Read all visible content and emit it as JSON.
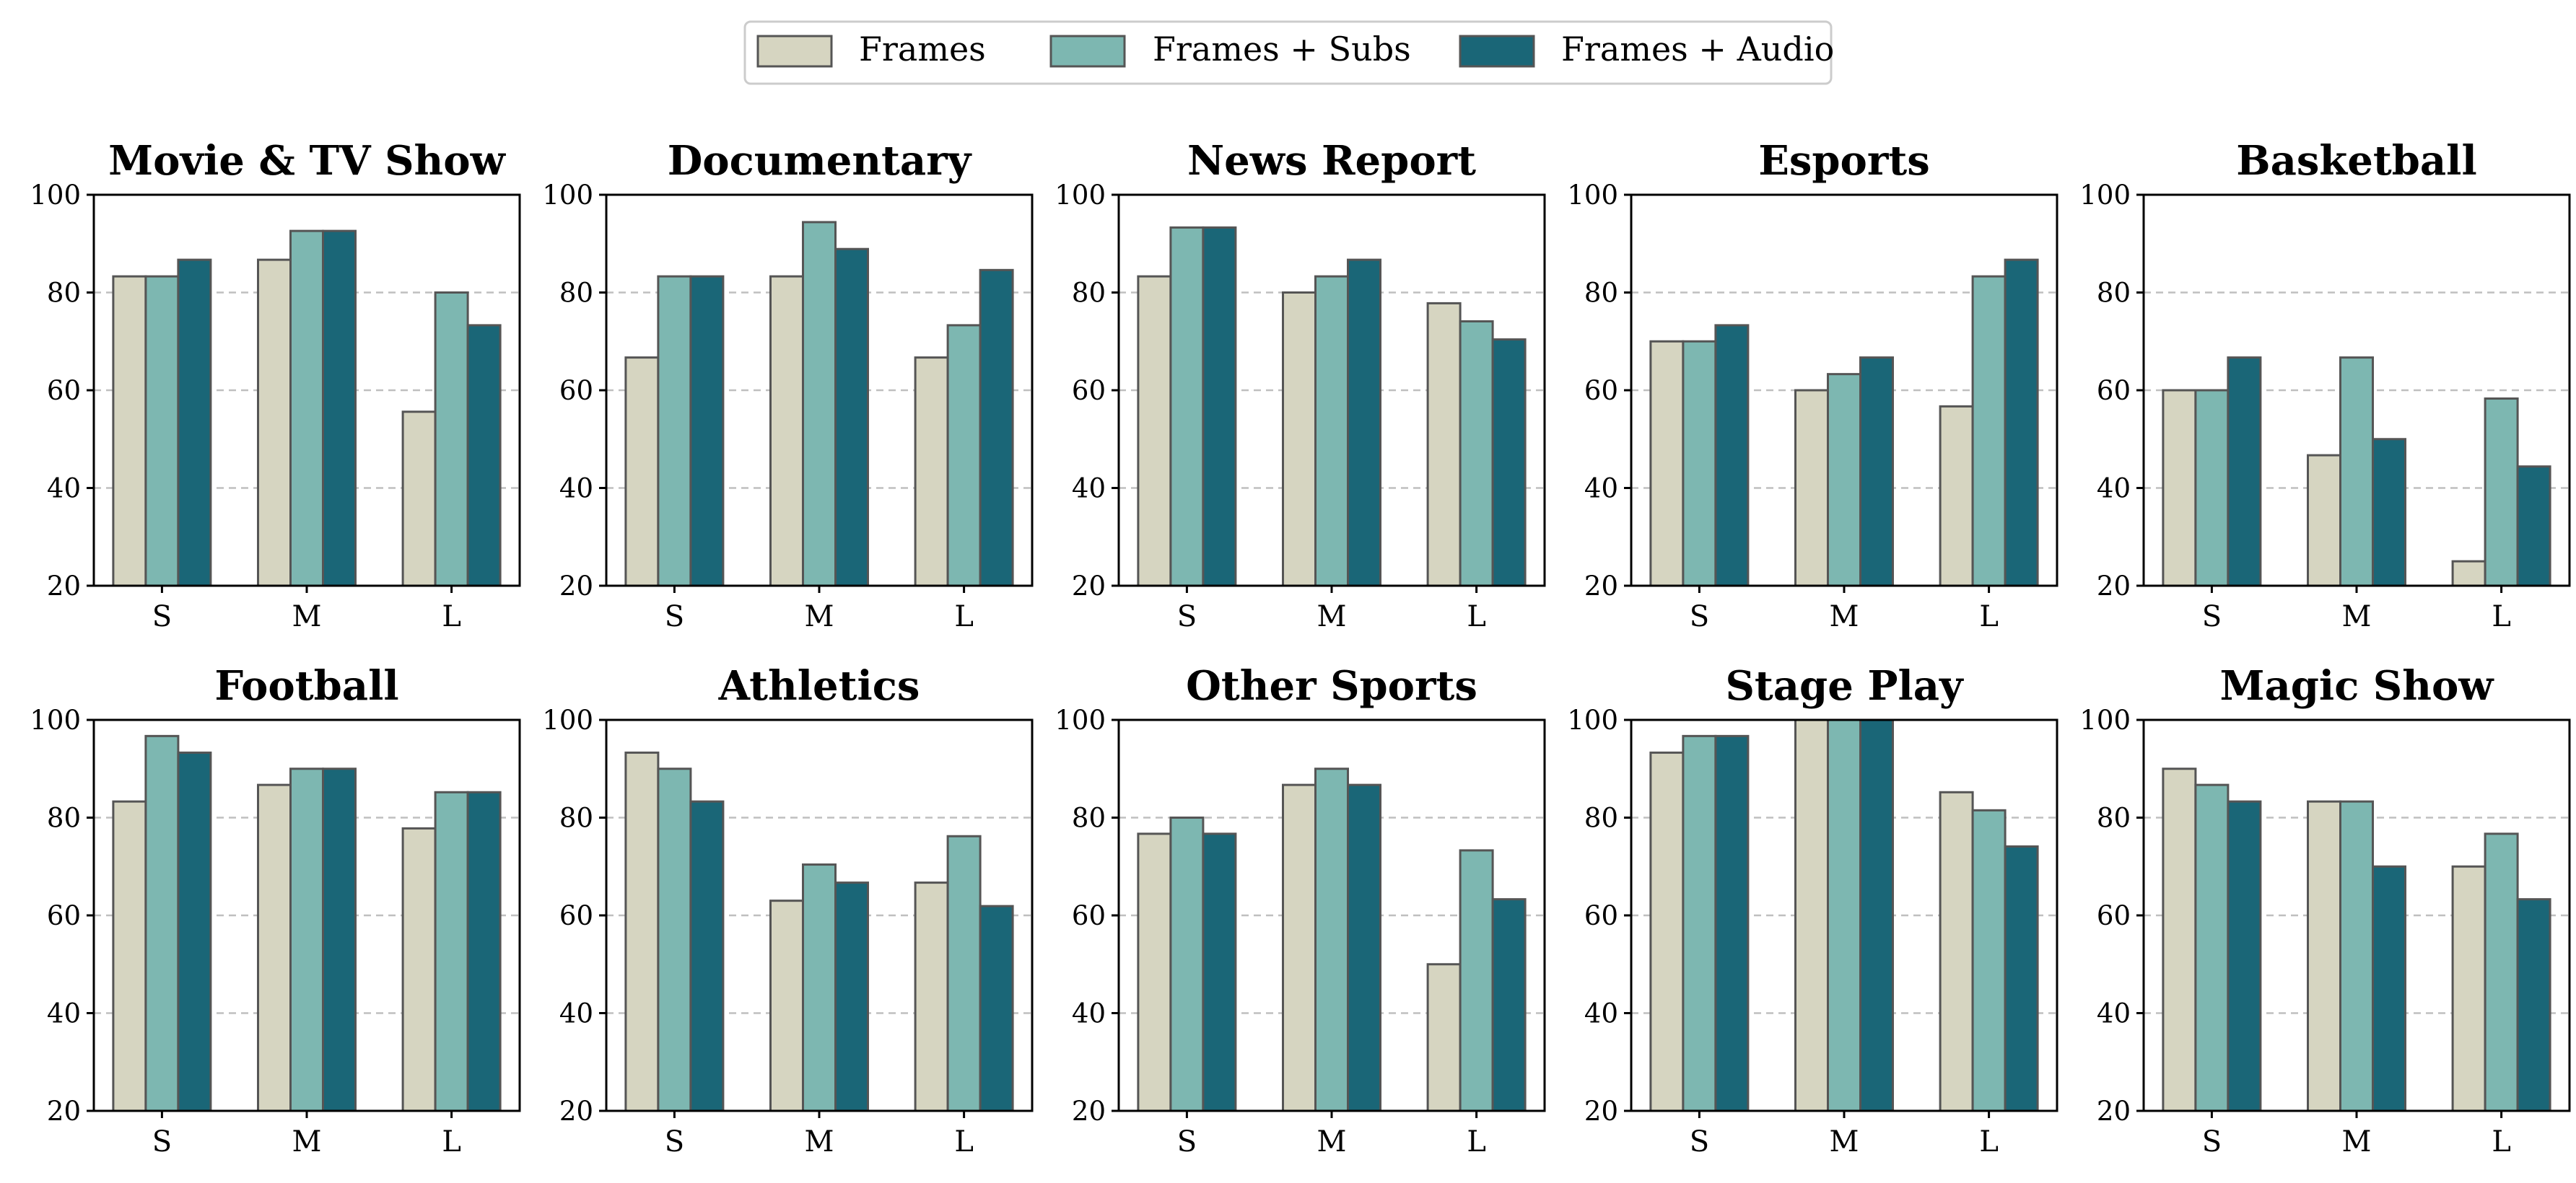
{
  "legend": [
    {
      "label": "Frames",
      "color": "#d6d5c1"
    },
    {
      "label": "Frames + Subs",
      "color": "#7db7b1"
    },
    {
      "label": "Frames + Audio",
      "color": "#1a6677"
    }
  ],
  "chart_data": [
    {
      "type": "bar",
      "title": "Movie & TV Show",
      "categories": [
        "S",
        "M",
        "L"
      ],
      "ylim": [
        20,
        100
      ],
      "yticks": [
        20,
        40,
        60,
        80,
        100
      ],
      "grid": "y-dashed",
      "series": [
        {
          "name": "Frames",
          "values": [
            83.3,
            86.7,
            55.6
          ]
        },
        {
          "name": "Frames + Subs",
          "values": [
            83.3,
            92.6,
            80.0
          ]
        },
        {
          "name": "Frames + Audio",
          "values": [
            86.7,
            92.6,
            73.3
          ]
        }
      ]
    },
    {
      "type": "bar",
      "title": "Documentary",
      "categories": [
        "S",
        "M",
        "L"
      ],
      "ylim": [
        20,
        100
      ],
      "yticks": [
        20,
        40,
        60,
        80,
        100
      ],
      "grid": "y-dashed",
      "series": [
        {
          "name": "Frames",
          "values": [
            66.7,
            83.3,
            66.7
          ]
        },
        {
          "name": "Frames + Subs",
          "values": [
            83.3,
            94.4,
            73.3
          ]
        },
        {
          "name": "Frames + Audio",
          "values": [
            83.3,
            88.9,
            84.6
          ]
        }
      ]
    },
    {
      "type": "bar",
      "title": "News Report",
      "categories": [
        "S",
        "M",
        "L"
      ],
      "ylim": [
        20,
        100
      ],
      "yticks": [
        20,
        40,
        60,
        80,
        100
      ],
      "grid": "y-dashed",
      "series": [
        {
          "name": "Frames",
          "values": [
            83.3,
            80.0,
            77.8
          ]
        },
        {
          "name": "Frames + Subs",
          "values": [
            93.3,
            83.3,
            74.1
          ]
        },
        {
          "name": "Frames + Audio",
          "values": [
            93.3,
            86.7,
            70.4
          ]
        }
      ]
    },
    {
      "type": "bar",
      "title": "Esports",
      "categories": [
        "S",
        "M",
        "L"
      ],
      "ylim": [
        20,
        100
      ],
      "yticks": [
        20,
        40,
        60,
        80,
        100
      ],
      "grid": "y-dashed",
      "series": [
        {
          "name": "Frames",
          "values": [
            70.0,
            60.0,
            56.7
          ]
        },
        {
          "name": "Frames + Subs",
          "values": [
            70.0,
            63.3,
            83.3
          ]
        },
        {
          "name": "Frames + Audio",
          "values": [
            73.3,
            66.7,
            86.7
          ]
        }
      ]
    },
    {
      "type": "bar",
      "title": "Basketball",
      "categories": [
        "S",
        "M",
        "L"
      ],
      "ylim": [
        20,
        100
      ],
      "yticks": [
        20,
        40,
        60,
        80,
        100
      ],
      "grid": "y-dashed",
      "series": [
        {
          "name": "Frames",
          "values": [
            60.0,
            46.7,
            25.0
          ]
        },
        {
          "name": "Frames + Subs",
          "values": [
            60.0,
            66.7,
            58.3
          ]
        },
        {
          "name": "Frames + Audio",
          "values": [
            66.7,
            50.0,
            44.4
          ]
        }
      ]
    },
    {
      "type": "bar",
      "title": "Football",
      "categories": [
        "S",
        "M",
        "L"
      ],
      "ylim": [
        20,
        100
      ],
      "yticks": [
        20,
        40,
        60,
        80,
        100
      ],
      "grid": "y-dashed",
      "series": [
        {
          "name": "Frames",
          "values": [
            83.3,
            86.7,
            77.8
          ]
        },
        {
          "name": "Frames + Subs",
          "values": [
            96.7,
            90.0,
            85.2
          ]
        },
        {
          "name": "Frames + Audio",
          "values": [
            93.3,
            90.0,
            85.2
          ]
        }
      ]
    },
    {
      "type": "bar",
      "title": "Athletics",
      "categories": [
        "S",
        "M",
        "L"
      ],
      "ylim": [
        20,
        100
      ],
      "yticks": [
        20,
        40,
        60,
        80,
        100
      ],
      "grid": "y-dashed",
      "series": [
        {
          "name": "Frames",
          "values": [
            93.3,
            63.0,
            66.7
          ]
        },
        {
          "name": "Frames + Subs",
          "values": [
            90.0,
            70.4,
            76.2
          ]
        },
        {
          "name": "Frames + Audio",
          "values": [
            83.3,
            66.7,
            61.9
          ]
        }
      ]
    },
    {
      "type": "bar",
      "title": "Other Sports",
      "categories": [
        "S",
        "M",
        "L"
      ],
      "ylim": [
        20,
        100
      ],
      "yticks": [
        20,
        40,
        60,
        80,
        100
      ],
      "grid": "y-dashed",
      "series": [
        {
          "name": "Frames",
          "values": [
            76.7,
            86.7,
            50.0
          ]
        },
        {
          "name": "Frames + Subs",
          "values": [
            80.0,
            90.0,
            73.3
          ]
        },
        {
          "name": "Frames + Audio",
          "values": [
            76.7,
            86.7,
            63.3
          ]
        }
      ]
    },
    {
      "type": "bar",
      "title": "Stage Play",
      "categories": [
        "S",
        "M",
        "L"
      ],
      "ylim": [
        20,
        100
      ],
      "yticks": [
        20,
        40,
        60,
        80,
        100
      ],
      "grid": "y-dashed",
      "series": [
        {
          "name": "Frames",
          "values": [
            93.3,
            100.0,
            85.2
          ]
        },
        {
          "name": "Frames + Subs",
          "values": [
            96.7,
            100.0,
            81.5
          ]
        },
        {
          "name": "Frames + Audio",
          "values": [
            96.7,
            100.0,
            74.1
          ]
        }
      ]
    },
    {
      "type": "bar",
      "title": "Magic Show",
      "categories": [
        "S",
        "M",
        "L"
      ],
      "ylim": [
        20,
        100
      ],
      "yticks": [
        20,
        40,
        60,
        80,
        100
      ],
      "grid": "y-dashed",
      "series": [
        {
          "name": "Frames",
          "values": [
            90.0,
            83.3,
            70.0
          ]
        },
        {
          "name": "Frames + Subs",
          "values": [
            86.7,
            83.3,
            76.7
          ]
        },
        {
          "name": "Frames + Audio",
          "values": [
            83.3,
            70.0,
            63.3
          ]
        }
      ]
    }
  ]
}
